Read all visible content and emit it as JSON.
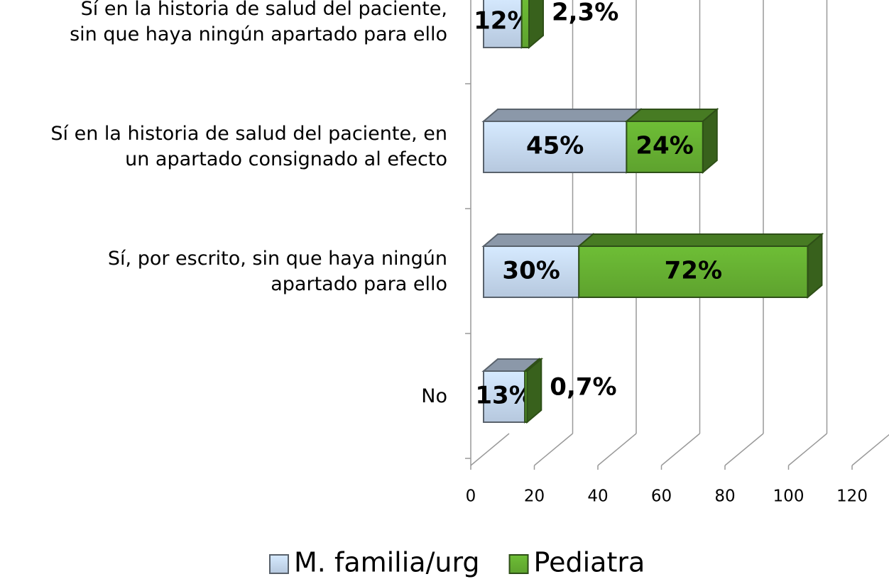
{
  "chart_data": {
    "type": "bar",
    "orientation": "horizontal",
    "stacked": true,
    "three_d": true,
    "categories": [
      "Sí en la historia de salud del paciente,\nsin que haya ningún apartado para ello",
      "Sí en la historia de salud del paciente, en\nun apartado consignado al efecto",
      "Sí, por escrito, sin que haya ningún\napartado para ello",
      "No"
    ],
    "series": [
      {
        "name": "M. familia/urg",
        "color": "#c6d9f1",
        "values": [
          12,
          45,
          30,
          13
        ],
        "value_labels": [
          "12%",
          "45%",
          "30%",
          "13%"
        ]
      },
      {
        "name": "Pediatra",
        "color": "#66b032",
        "values": [
          2.3,
          24,
          72,
          0.7
        ],
        "value_labels": [
          "2,3%",
          "24%",
          "72%",
          "0,7%"
        ]
      }
    ],
    "xlim": [
      0,
      120
    ],
    "xticks": [
      0,
      20,
      40,
      60,
      80,
      100,
      120
    ],
    "grid": true,
    "legend": "bottom"
  }
}
